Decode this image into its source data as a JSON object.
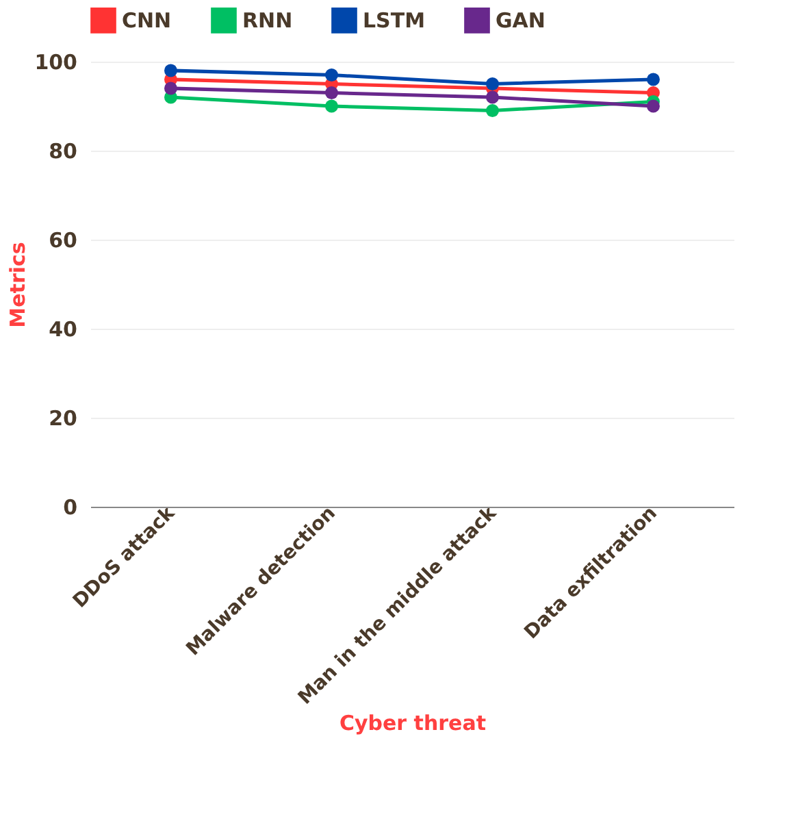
{
  "chart_data": {
    "type": "line",
    "xlabel": "Cyber threat",
    "ylabel": "Metrics",
    "categories": [
      "DDoS attack",
      "Malware detection",
      "Man in the middle attack",
      "Data exfiltration"
    ],
    "series": [
      {
        "name": "CNN",
        "color": "#ff3333",
        "values": [
          96,
          95,
          94,
          93
        ]
      },
      {
        "name": "RNN",
        "color": "#00bf63",
        "values": [
          92,
          90,
          89,
          91
        ]
      },
      {
        "name": "LSTM",
        "color": "#0047ab",
        "values": [
          98,
          97,
          95,
          96
        ]
      },
      {
        "name": "GAN",
        "color": "#68288c",
        "values": [
          94,
          93,
          92,
          90
        ]
      }
    ],
    "ylim": [
      0,
      100
    ],
    "yticks": [
      0,
      20,
      40,
      60,
      80,
      100
    ],
    "grid": "y",
    "legend": "top",
    "marker": "circle",
    "line_style": "solid"
  }
}
